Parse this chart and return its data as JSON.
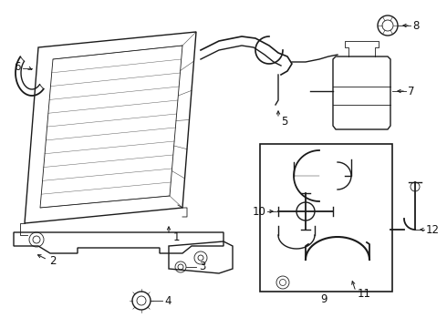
{
  "bg_color": "#ffffff",
  "line_color": "#1a1a1a",
  "label_color": "#111111",
  "fig_width": 4.9,
  "fig_height": 3.6,
  "dpi": 100,
  "lw_main": 1.0,
  "lw_thin": 0.6,
  "fs_label": 8.5
}
